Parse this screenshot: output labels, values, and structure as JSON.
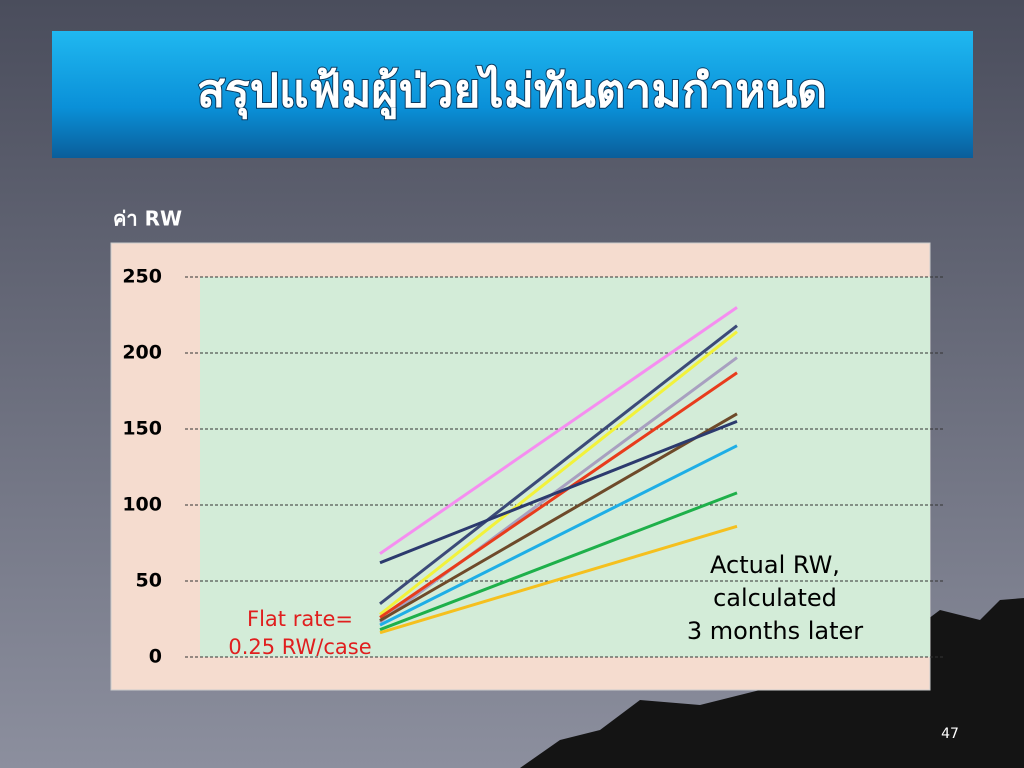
{
  "slide": {
    "title": "สรุปแฟ้มผู้ป่วยไม่ทันตามกำหนด",
    "page_number": "47"
  },
  "chart_data": {
    "type": "line",
    "ylabel": "ค่า RW",
    "categories": [
      null,
      null
    ],
    "ylim": [
      0,
      250
    ],
    "yticks": [
      0,
      50,
      100,
      150,
      200,
      250
    ],
    "grid": true,
    "series": [
      {
        "color": "#f58ef0",
        "values": [
          68,
          230
        ]
      },
      {
        "color": "#3c4a78",
        "values": [
          35,
          218
        ]
      },
      {
        "color": "#f2f23a",
        "values": [
          28,
          214
        ]
      },
      {
        "color": "#a8a0c0",
        "values": [
          23,
          197
        ]
      },
      {
        "color": "#e83c1c",
        "values": [
          26,
          187
        ]
      },
      {
        "color": "#6e4a2a",
        "values": [
          24,
          160
        ]
      },
      {
        "color": "#1eaee6",
        "values": [
          21,
          139
        ]
      },
      {
        "color": "#1eb04a",
        "values": [
          18,
          108
        ]
      },
      {
        "color": "#f5c01e",
        "values": [
          16,
          86
        ]
      },
      {
        "color": "#2c3a6e",
        "values": [
          62,
          155
        ]
      }
    ],
    "annotations": [
      {
        "lines": [
          "Flat rate=",
          "0.25 RW/case"
        ],
        "color": "#e01e1e"
      },
      {
        "lines": [
          "Actual RW,",
          "calculated",
          "3 months later"
        ],
        "color": "#000000"
      }
    ]
  }
}
